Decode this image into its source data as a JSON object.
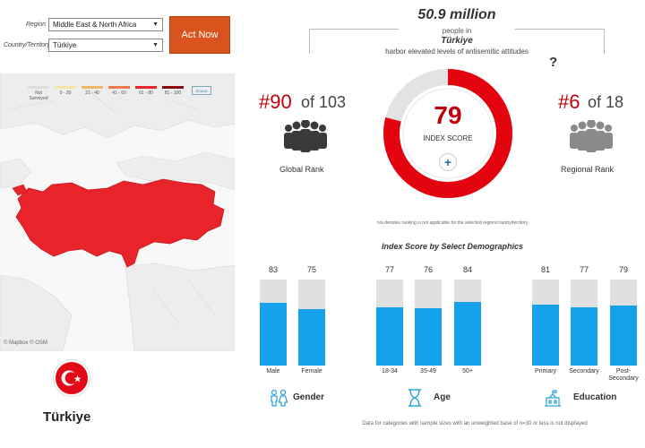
{
  "filters": {
    "region_label": "Region",
    "region_value": "Middle East & North Africa",
    "country_label": "Country/Territory",
    "country_value": "Türkiye",
    "act_now_label": "Act Now"
  },
  "legend": {
    "items": [
      {
        "label": "Not Surveyed",
        "color": "#dddddd"
      },
      {
        "label": "0 - 20",
        "color": "#f6e3a8"
      },
      {
        "label": "21 - 40",
        "color": "#f2b66f"
      },
      {
        "label": "41 - 60",
        "color": "#f07a4a"
      },
      {
        "label": "61 - 80",
        "color": "#e8242a"
      },
      {
        "label": "81 - 100",
        "color": "#8b0a14"
      }
    ],
    "scale_label": "SCALE"
  },
  "map": {
    "credit": "© Mapbox © OSM",
    "highlight_color": "#e8242a"
  },
  "country_card": {
    "name": "Türkiye",
    "flag_color": "#e30a17"
  },
  "headline": {
    "population": "50.9 million",
    "people_in": "people in",
    "country": "Türkiye",
    "statement": "harbor elevated levels of antisemitic attitudes",
    "question_mark": "?"
  },
  "global_rank": {
    "rank": "#90",
    "of_text": "of 103",
    "label": "Global Rank"
  },
  "regional_rank": {
    "rank": "#6",
    "of_text": "of 18",
    "label": "Regional Rank"
  },
  "index": {
    "score": "79",
    "score_value": 79,
    "label": "INDEX SCORE",
    "plus": "+",
    "ring_color": "#e3030f",
    "track_color": "#e3e3e3"
  },
  "notes": {
    "na_note": "n/a denotes ranking is not applicable for the selected region/country/territory",
    "demo_title": "Index Score by Select Demographics",
    "bottom_note": "Data for categories with sample sizes with an unweighted base of n=30 or less is not displayed"
  },
  "demographics": {
    "bar_color": "#16a2ea",
    "groups": [
      {
        "label": "Gender",
        "icon": "gender-icon",
        "bars": [
          {
            "category": "Male",
            "value": 83
          },
          {
            "category": "Female",
            "value": 75
          }
        ]
      },
      {
        "label": "Age",
        "icon": "hourglass-icon",
        "bars": [
          {
            "category": "18-34",
            "value": 77
          },
          {
            "category": "35-49",
            "value": 76
          },
          {
            "category": "50+",
            "value": 84
          }
        ]
      },
      {
        "label": "Education",
        "icon": "school-icon",
        "bars": [
          {
            "category": "Primary",
            "value": 81
          },
          {
            "category": "Secondary",
            "value": 77
          },
          {
            "category": "Post-Secondary",
            "value": 79
          }
        ]
      }
    ]
  }
}
